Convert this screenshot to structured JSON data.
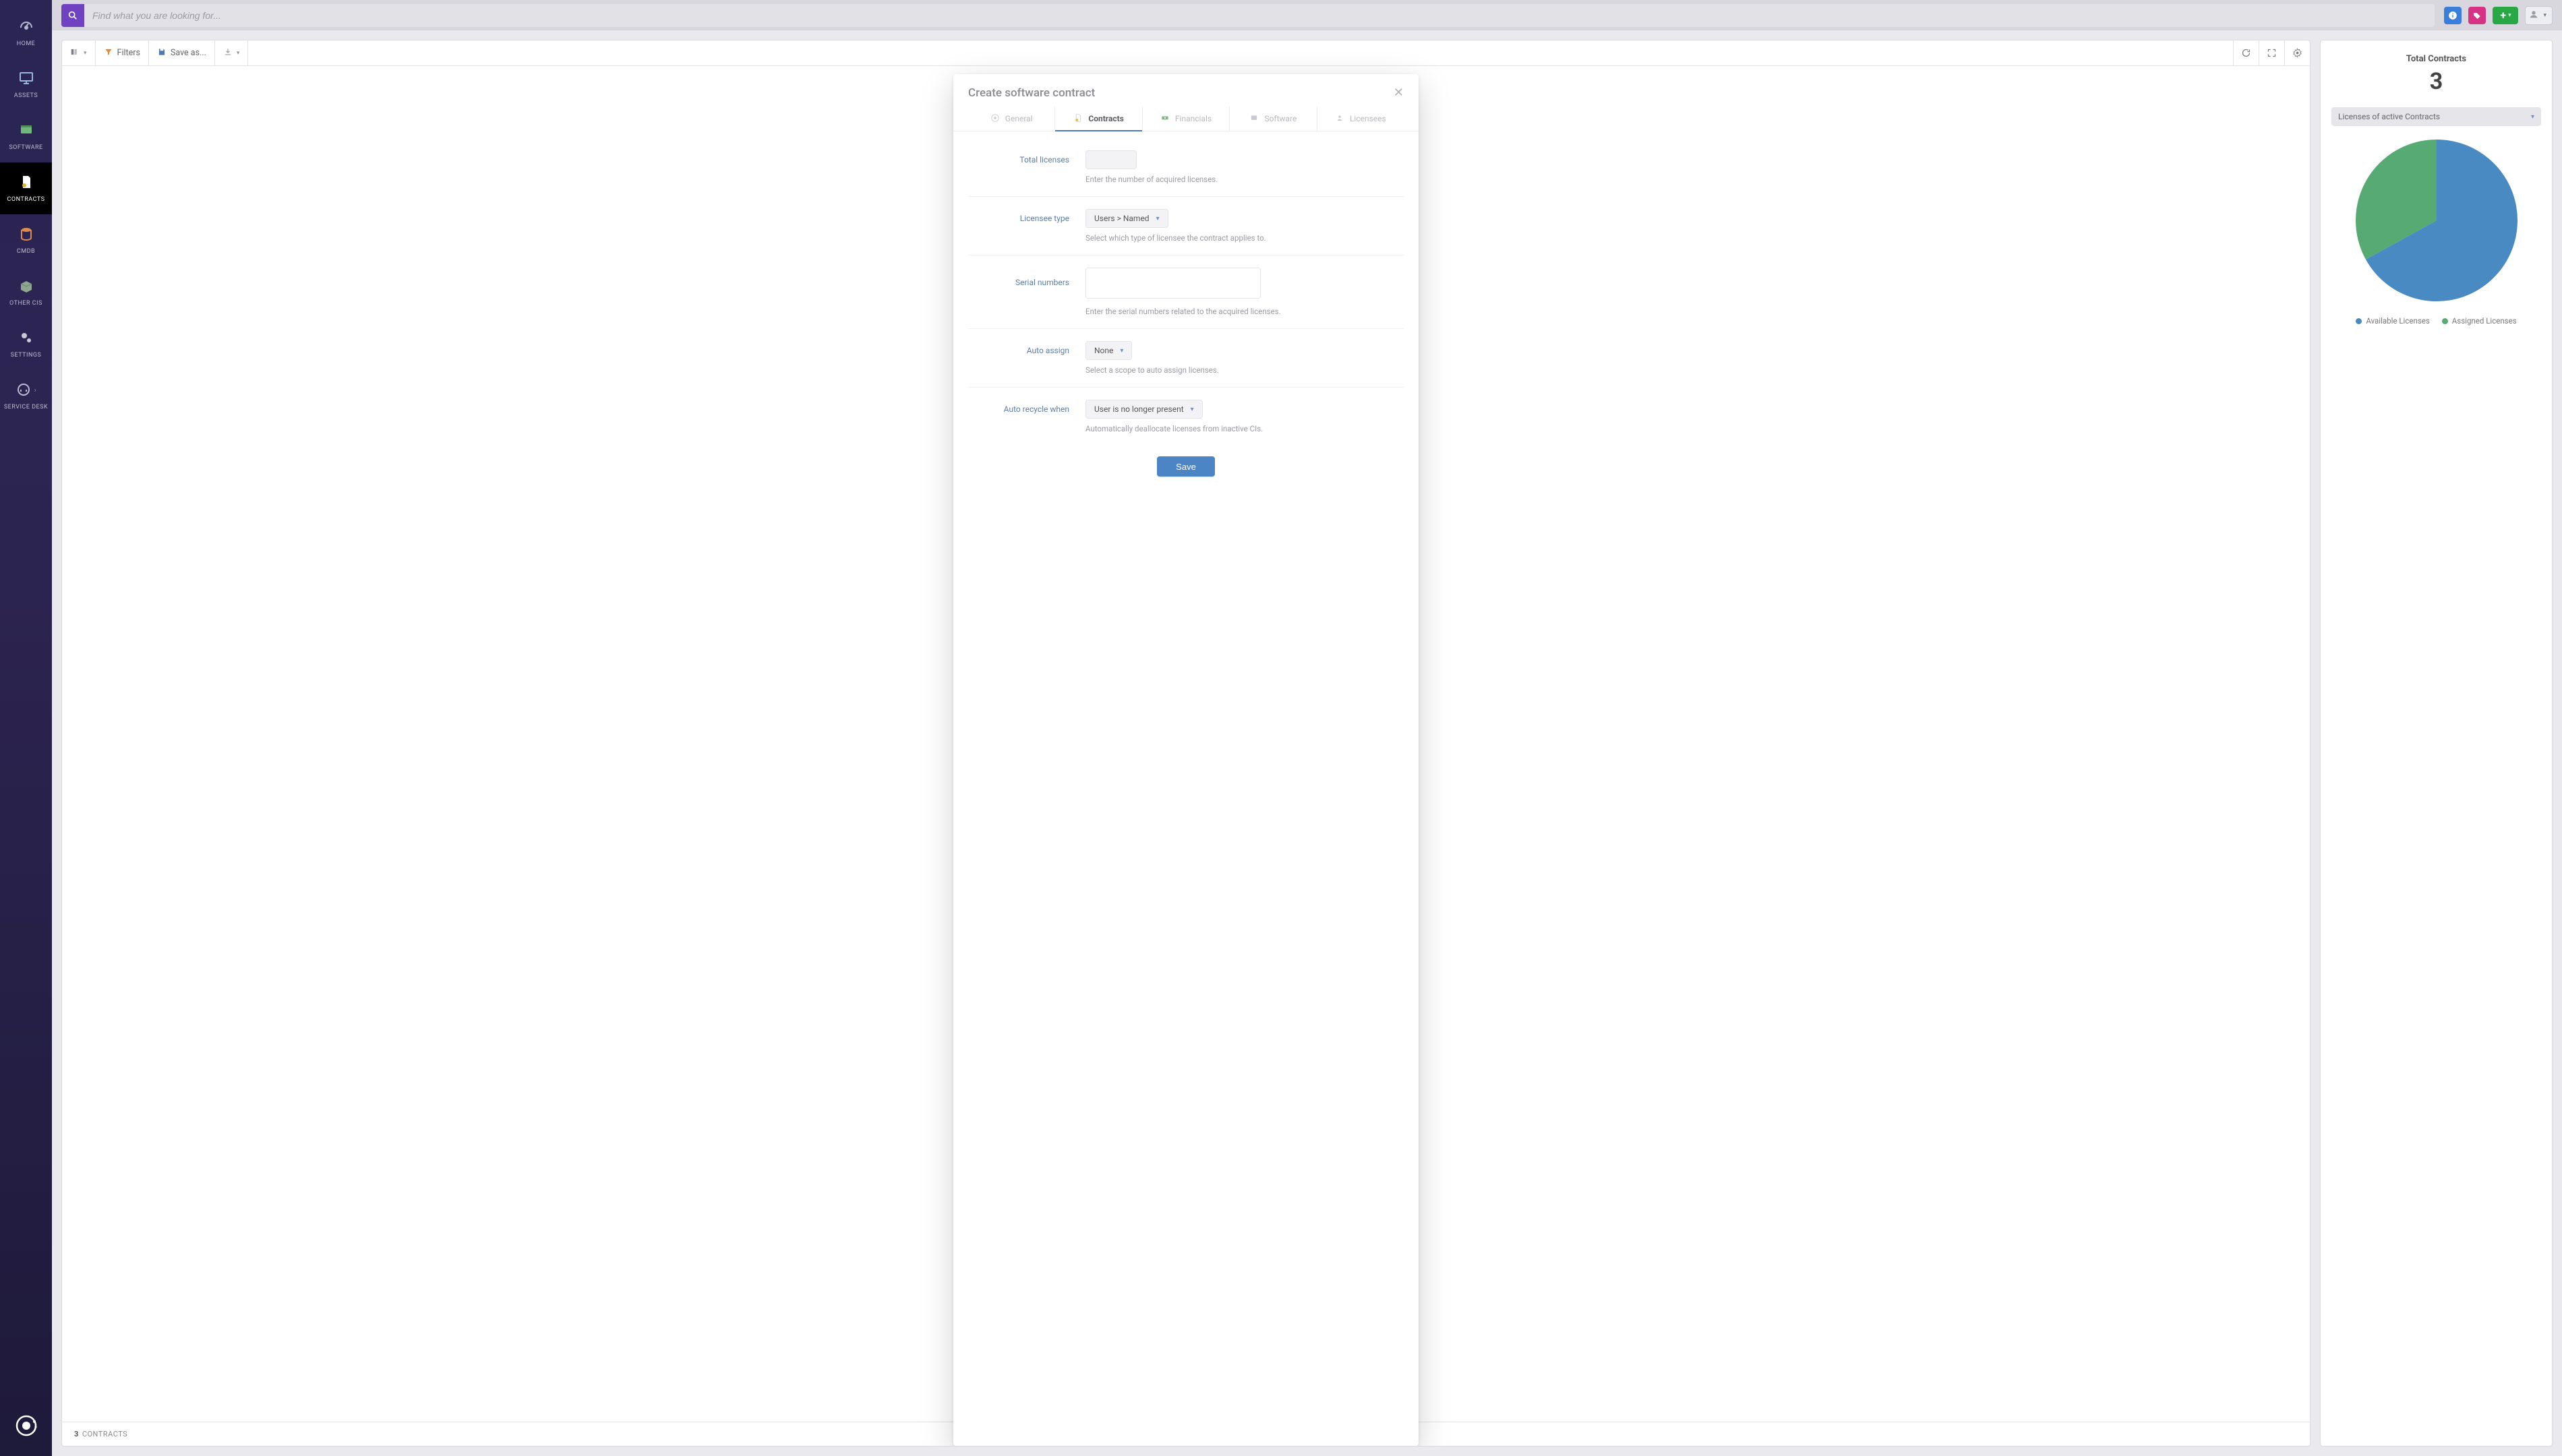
{
  "sidebar": {
    "items": [
      {
        "label": "HOME"
      },
      {
        "label": "ASSETS"
      },
      {
        "label": "SOFTWARE"
      },
      {
        "label": "CONTRACTS"
      },
      {
        "label": "CMDB"
      },
      {
        "label": "OTHER CIs"
      },
      {
        "label": "SETTINGS"
      },
      {
        "label": "SERVICE DESK"
      }
    ],
    "active_index": 3
  },
  "topbar": {
    "search_placeholder": "Find what you are looking for...",
    "colors": {
      "search_btn": "#6f42c1",
      "info_btn": "#3b7ddd",
      "tag_btn": "#d63384",
      "add_btn": "#28a745"
    }
  },
  "list_panel": {
    "toolbar": {
      "filters_label": "Filters",
      "saveas_label": "Save as..."
    },
    "footer": {
      "count": 3,
      "label": "CONTRACTS"
    }
  },
  "summary": {
    "title": "Total Contracts",
    "count": 3,
    "selector_label": "Licenses of active Contracts",
    "pie": {
      "type": "pie",
      "radius": 120,
      "background": "#ffffff",
      "slices": [
        {
          "key": "available",
          "label": "Available Licenses",
          "value": 67,
          "color": "#4a8ac2"
        },
        {
          "key": "assigned",
          "label": "Assigned Licenses",
          "value": 33,
          "color": "#57ab72"
        }
      ]
    }
  },
  "dialog": {
    "title": "Create software contract",
    "tabs": [
      {
        "label": "General"
      },
      {
        "label": "Contracts"
      },
      {
        "label": "Financials"
      },
      {
        "label": "Software"
      },
      {
        "label": "Licensees"
      }
    ],
    "active_tab": 1,
    "fields": {
      "total_licenses": {
        "label": "Total licenses",
        "hint": "Enter the number of acquired licenses."
      },
      "licensee_type": {
        "label": "Licensee type",
        "value": "Users > Named",
        "hint": "Select which type of licensee the contract applies to."
      },
      "serial_numbers": {
        "label": "Serial numbers",
        "hint": "Enter the serial numbers related to the acquired licenses."
      },
      "auto_assign": {
        "label": "Auto assign",
        "value": "None",
        "hint": "Select a scope to auto assign licenses."
      },
      "auto_recycle": {
        "label": "Auto recycle when",
        "value": "User is no longer present",
        "hint": "Automatically deallocate licenses from inactive CIs."
      }
    },
    "save_label": "Save"
  }
}
